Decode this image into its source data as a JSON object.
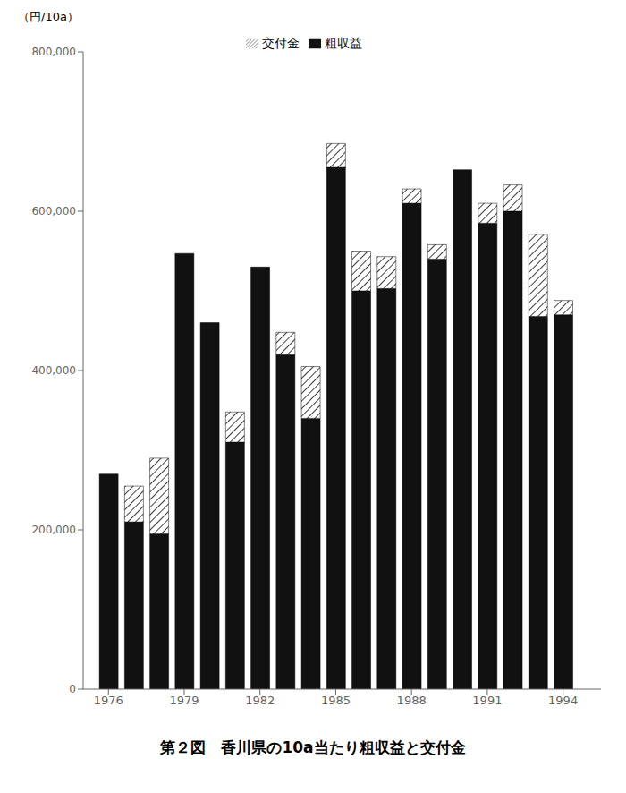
{
  "chart_data": {
    "type": "bar",
    "title": "第２図　香川県の10a当たり粗収益と交付金",
    "ylabel": "（円/10a）",
    "x": [
      1976,
      1977,
      1978,
      1979,
      1980,
      1981,
      1982,
      1983,
      1984,
      1985,
      1986,
      1987,
      1988,
      1989,
      1990,
      1991,
      1992,
      1993,
      1994
    ],
    "series": [
      {
        "name": "粗収益",
        "color": "#111111",
        "values": [
          270000,
          210000,
          195000,
          547000,
          460000,
          310000,
          530000,
          420000,
          340000,
          655000,
          500000,
          503000,
          610000,
          540000,
          652000,
          585000,
          600000,
          468000,
          470000
        ]
      },
      {
        "name": "交付金",
        "color": "white",
        "values": [
          0,
          45000,
          95000,
          0,
          0,
          38000,
          0,
          28000,
          65000,
          30000,
          50000,
          40000,
          18000,
          18000,
          0,
          25000,
          33000,
          103000,
          18000
        ]
      }
    ],
    "stacked": true,
    "xlim": [
      1975,
      1995.5
    ],
    "xticks": [
      1976,
      1979,
      1982,
      1985,
      1988,
      1991,
      1994
    ],
    "ylim": [
      0,
      800000
    ],
    "yticks": [
      0,
      {
        "value": 200000,
        "label": "200,000"
      },
      {
        "value": 400000,
        "label": "400,000"
      },
      {
        "value": 600000,
        "label": "600,000"
      },
      {
        "value": 800000,
        "label": "800,000"
      }
    ],
    "legend": "top"
  }
}
